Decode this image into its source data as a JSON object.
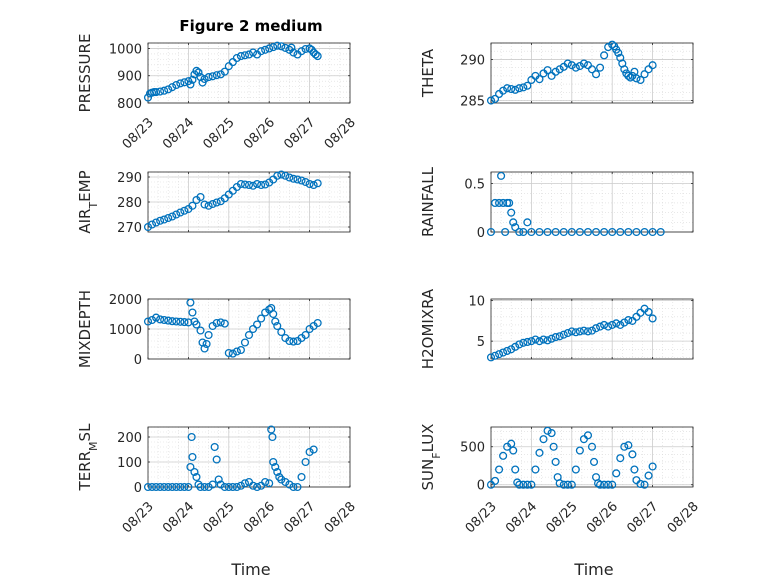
{
  "figure_title": "Figure 2 medium",
  "x_axis_label": "Time",
  "marker_color": "#0072BD",
  "chart_data": [
    {
      "type": "scatter",
      "ylabel": "PRESSURE",
      "ylim": [
        800,
        1020
      ],
      "yticks": [
        800,
        900,
        1000
      ],
      "ytick_labels": [
        "800",
        "900",
        "1000"
      ],
      "xlim": [
        "08/23",
        "08/28"
      ],
      "xtick_labels": [
        "08/23",
        "08/24",
        "08/25",
        "08/26",
        "08/27",
        "08/28"
      ],
      "grid": true,
      "x": [
        0.0,
        0.05,
        0.1,
        0.15,
        0.2,
        0.3,
        0.4,
        0.5,
        0.6,
        0.7,
        0.8,
        0.9,
        1.0,
        1.05,
        1.1,
        1.15,
        1.2,
        1.25,
        1.3,
        1.35,
        1.4,
        1.5,
        1.6,
        1.7,
        1.8,
        1.9,
        2.0,
        2.1,
        2.2,
        2.3,
        2.4,
        2.5,
        2.6,
        2.7,
        2.8,
        2.9,
        3.0,
        3.1,
        3.2,
        3.3,
        3.4,
        3.5,
        3.55,
        3.6,
        3.7,
        3.8,
        3.9,
        4.0,
        4.05,
        4.1,
        4.15,
        4.2
      ],
      "y": [
        820,
        835,
        838,
        840,
        840,
        842,
        845,
        850,
        858,
        866,
        872,
        876,
        880,
        868,
        885,
        905,
        918,
        912,
        895,
        875,
        888,
        895,
        898,
        902,
        905,
        915,
        935,
        950,
        965,
        972,
        975,
        978,
        985,
        978,
        990,
        995,
        1000,
        1005,
        1010,
        1008,
        1002,
        995,
        1003,
        985,
        978,
        990,
        998,
        1000,
        995,
        985,
        978,
        972
      ]
    },
    {
      "type": "scatter",
      "ylabel": "THETA",
      "ylim": [
        284.7,
        292
      ],
      "yticks": [
        285,
        290
      ],
      "ytick_labels": [
        "285",
        "290"
      ],
      "xlim": [
        "08/23",
        "08/28"
      ],
      "grid": true,
      "x": [
        0.0,
        0.1,
        0.2,
        0.3,
        0.4,
        0.5,
        0.6,
        0.7,
        0.8,
        0.9,
        1.0,
        1.1,
        1.2,
        1.3,
        1.4,
        1.5,
        1.6,
        1.7,
        1.8,
        1.9,
        2.0,
        2.1,
        2.2,
        2.3,
        2.4,
        2.5,
        2.6,
        2.7,
        2.8,
        2.9,
        3.0,
        3.05,
        3.1,
        3.15,
        3.2,
        3.25,
        3.3,
        3.35,
        3.4,
        3.45,
        3.5,
        3.55,
        3.6,
        3.7,
        3.8,
        3.9,
        4.0
      ],
      "y": [
        285.0,
        285.2,
        285.8,
        286.2,
        286.5,
        286.4,
        286.3,
        286.5,
        286.6,
        286.8,
        287.5,
        288.0,
        287.6,
        288.3,
        288.7,
        288.0,
        288.5,
        288.8,
        289.1,
        289.5,
        289.3,
        289.0,
        289.2,
        289.5,
        289.3,
        288.8,
        288.2,
        289.0,
        290.5,
        291.5,
        291.8,
        291.6,
        291.2,
        290.8,
        290.2,
        289.5,
        288.8,
        288.3,
        288.0,
        287.8,
        288.0,
        288.5,
        287.7,
        287.5,
        288.2,
        288.8,
        289.3
      ]
    },
    {
      "type": "scatter",
      "ylabel": "AIR_TEMP",
      "ylim": [
        268,
        292
      ],
      "yticks": [
        270,
        280,
        290
      ],
      "ytick_labels": [
        "270",
        "280",
        "290"
      ],
      "xlim": [
        "08/23",
        "08/28"
      ],
      "grid": true,
      "x": [
        0.0,
        0.1,
        0.2,
        0.3,
        0.4,
        0.5,
        0.6,
        0.7,
        0.8,
        0.9,
        1.0,
        1.1,
        1.2,
        1.3,
        1.4,
        1.5,
        1.6,
        1.7,
        1.8,
        1.9,
        2.0,
        2.1,
        2.2,
        2.3,
        2.4,
        2.5,
        2.6,
        2.7,
        2.8,
        2.9,
        3.0,
        3.1,
        3.2,
        3.3,
        3.4,
        3.5,
        3.6,
        3.7,
        3.8,
        3.9,
        4.0,
        4.1,
        4.2
      ],
      "y": [
        270.0,
        271.0,
        271.8,
        272.5,
        273.0,
        273.6,
        274.2,
        275.0,
        275.8,
        276.5,
        277.2,
        278.5,
        280.8,
        282.0,
        279.0,
        278.5,
        279.2,
        279.8,
        280.3,
        281.5,
        283.0,
        284.5,
        286.0,
        287.2,
        287.0,
        286.8,
        286.5,
        287.2,
        286.8,
        287.0,
        287.8,
        289.0,
        290.5,
        291.0,
        290.5,
        289.8,
        289.3,
        289.0,
        288.6,
        288.0,
        287.2,
        286.8,
        287.5
      ]
    },
    {
      "type": "scatter",
      "ylabel": "RAINFALL",
      "ylim": [
        0,
        0.62
      ],
      "yticks": [
        0,
        0.5
      ],
      "ytick_labels": [
        "0",
        "0.5"
      ],
      "xlim": [
        "08/23",
        "08/28"
      ],
      "grid": true,
      "x": [
        0.0,
        0.1,
        0.2,
        0.25,
        0.3,
        0.35,
        0.4,
        0.45,
        0.5,
        0.55,
        0.6,
        0.7,
        0.8,
        0.9,
        1.0,
        1.2,
        1.4,
        1.6,
        1.8,
        2.0,
        2.2,
        2.4,
        2.6,
        2.8,
        3.0,
        3.2,
        3.4,
        3.6,
        3.8,
        4.0,
        4.2
      ],
      "y": [
        0,
        0.3,
        0.3,
        0.58,
        0.3,
        0.0,
        0.3,
        0.3,
        0.2,
        0.1,
        0.05,
        0.0,
        0.0,
        0.1,
        0.0,
        0.0,
        0.0,
        0.0,
        0.0,
        0.0,
        0.0,
        0.0,
        0.0,
        0.0,
        0.0,
        0.0,
        0.0,
        0.0,
        0.0,
        0.0,
        0.0
      ]
    },
    {
      "type": "scatter",
      "ylabel": "MIXDEPTH",
      "ylim": [
        0,
        2000
      ],
      "yticks": [
        0,
        1000,
        2000
      ],
      "ytick_labels": [
        "0",
        "1000",
        "2000"
      ],
      "xlim": [
        "08/23",
        "08/28"
      ],
      "grid": true,
      "x": [
        0.0,
        0.1,
        0.2,
        0.3,
        0.4,
        0.5,
        0.6,
        0.7,
        0.8,
        0.9,
        1.0,
        1.05,
        1.1,
        1.15,
        1.2,
        1.3,
        1.35,
        1.4,
        1.45,
        1.5,
        1.6,
        1.7,
        1.8,
        1.9,
        2.0,
        2.1,
        2.2,
        2.3,
        2.4,
        2.5,
        2.6,
        2.7,
        2.8,
        2.9,
        3.0,
        3.05,
        3.1,
        3.15,
        3.2,
        3.3,
        3.4,
        3.5,
        3.6,
        3.7,
        3.8,
        3.9,
        4.0,
        4.1,
        4.2
      ],
      "y": [
        1250,
        1300,
        1380,
        1320,
        1300,
        1280,
        1260,
        1250,
        1240,
        1230,
        1220,
        1880,
        1550,
        1250,
        1150,
        950,
        550,
        350,
        500,
        800,
        1100,
        1200,
        1220,
        1180,
        200,
        180,
        250,
        300,
        550,
        800,
        1000,
        1150,
        1350,
        1550,
        1650,
        1700,
        1500,
        1250,
        1100,
        900,
        700,
        600,
        580,
        600,
        700,
        800,
        1000,
        1100,
        1200
      ]
    },
    {
      "type": "scatter",
      "ylabel": "H2OMIXRA",
      "ylim": [
        2.8,
        10.2
      ],
      "yticks": [
        5,
        10
      ],
      "ytick_labels": [
        "5",
        "10"
      ],
      "xlim": [
        "08/23",
        "08/28"
      ],
      "grid": true,
      "x": [
        0.0,
        0.1,
        0.2,
        0.3,
        0.4,
        0.5,
        0.6,
        0.7,
        0.8,
        0.9,
        1.0,
        1.1,
        1.2,
        1.3,
        1.4,
        1.5,
        1.6,
        1.7,
        1.8,
        1.9,
        2.0,
        2.1,
        2.2,
        2.3,
        2.4,
        2.5,
        2.6,
        2.7,
        2.8,
        2.9,
        3.0,
        3.1,
        3.2,
        3.3,
        3.4,
        3.5,
        3.6,
        3.7,
        3.8,
        3.9,
        4.0
      ],
      "y": [
        3.0,
        3.2,
        3.4,
        3.6,
        3.8,
        4.0,
        4.3,
        4.6,
        4.8,
        4.9,
        5.0,
        5.2,
        5.0,
        5.2,
        5.1,
        5.3,
        5.5,
        5.6,
        5.8,
        6.0,
        6.2,
        6.1,
        6.2,
        6.3,
        6.2,
        6.3,
        6.6,
        6.8,
        7.0,
        6.8,
        7.0,
        7.2,
        7.0,
        7.3,
        7.6,
        7.5,
        8.0,
        8.5,
        9.0,
        8.6,
        7.8
      ]
    },
    {
      "type": "scatter",
      "ylabel": "TERR_MSL",
      "ylim": [
        0,
        240
      ],
      "yticks": [
        0,
        100,
        200
      ],
      "ytick_labels": [
        "0",
        "100",
        "200"
      ],
      "xlim": [
        "08/23",
        "08/28"
      ],
      "xtick_labels": [
        "08/23",
        "08/24",
        "08/25",
        "08/26",
        "08/27",
        "08/28"
      ],
      "grid": true,
      "x": [
        0.0,
        0.1,
        0.2,
        0.3,
        0.4,
        0.5,
        0.6,
        0.7,
        0.8,
        0.9,
        1.0,
        1.05,
        1.08,
        1.1,
        1.15,
        1.2,
        1.25,
        1.3,
        1.4,
        1.5,
        1.6,
        1.65,
        1.7,
        1.75,
        1.8,
        1.9,
        2.0,
        2.1,
        2.2,
        2.3,
        2.4,
        2.5,
        2.6,
        2.7,
        2.8,
        2.9,
        3.0,
        3.05,
        3.08,
        3.1,
        3.15,
        3.2,
        3.25,
        3.3,
        3.4,
        3.5,
        3.6,
        3.7,
        3.8,
        3.9,
        4.0,
        4.1
      ],
      "y": [
        0,
        0,
        0,
        0,
        0,
        0,
        0,
        0,
        0,
        0,
        0,
        80,
        200,
        120,
        60,
        40,
        10,
        0,
        0,
        0,
        10,
        160,
        110,
        30,
        10,
        0,
        0,
        0,
        0,
        5,
        15,
        20,
        5,
        0,
        5,
        20,
        15,
        230,
        200,
        100,
        80,
        60,
        40,
        30,
        20,
        10,
        0,
        0,
        40,
        100,
        140,
        150
      ]
    },
    {
      "type": "scatter",
      "ylabel": "SUN_FLUX",
      "ylim": [
        -30,
        760
      ],
      "yticks": [
        0,
        500
      ],
      "ytick_labels": [
        "0",
        "500"
      ],
      "xlim": [
        "08/23",
        "08/28"
      ],
      "xtick_labels": [
        "08/23",
        "08/24",
        "08/25",
        "08/26",
        "08/27",
        "08/28"
      ],
      "grid": true,
      "x": [
        0.0,
        0.1,
        0.2,
        0.3,
        0.4,
        0.5,
        0.55,
        0.6,
        0.65,
        0.7,
        0.8,
        0.9,
        1.0,
        1.1,
        1.2,
        1.3,
        1.4,
        1.5,
        1.55,
        1.6,
        1.65,
        1.7,
        1.8,
        1.9,
        2.0,
        2.1,
        2.2,
        2.3,
        2.4,
        2.5,
        2.55,
        2.6,
        2.65,
        2.7,
        2.8,
        2.9,
        3.0,
        3.1,
        3.2,
        3.3,
        3.4,
        3.5,
        3.55,
        3.6,
        3.7,
        3.8,
        3.9,
        4.0
      ],
      "y": [
        0,
        50,
        200,
        380,
        500,
        540,
        450,
        200,
        30,
        0,
        0,
        0,
        0,
        200,
        420,
        600,
        710,
        680,
        500,
        300,
        100,
        20,
        0,
        0,
        0,
        200,
        450,
        600,
        650,
        500,
        300,
        100,
        20,
        0,
        0,
        0,
        0,
        150,
        350,
        500,
        520,
        400,
        200,
        60,
        10,
        0,
        120,
        240
      ]
    }
  ]
}
